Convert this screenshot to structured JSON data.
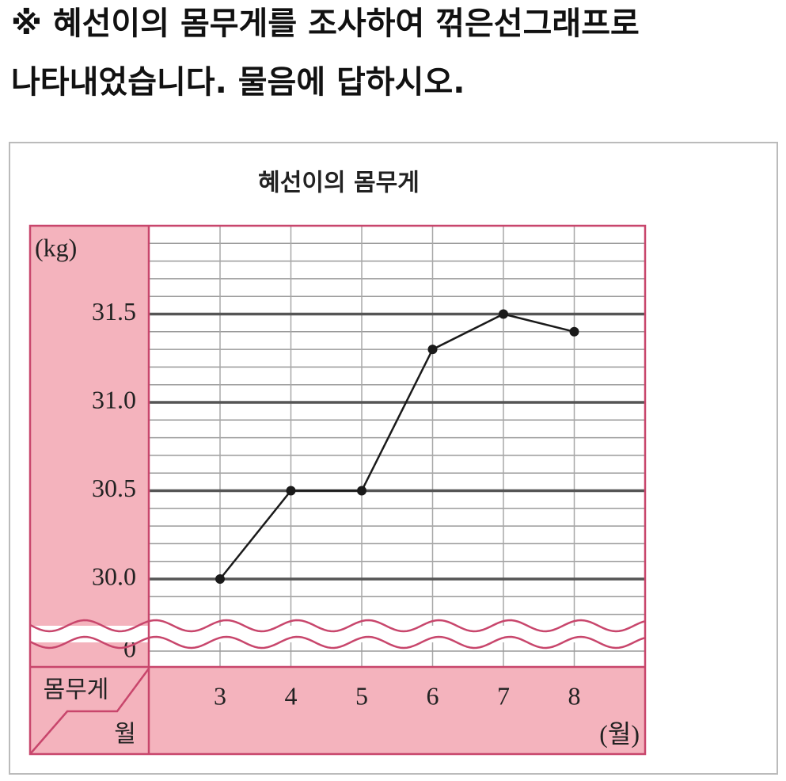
{
  "question": {
    "lines": [
      "※ 혜선이의 몸무게를 조사하여 꺾은선그래프로",
      "나타내었습니다. 물음에 답하시오."
    ]
  },
  "chart_data": {
    "type": "line",
    "title": "혜선이의 몸무게",
    "y_unit": "(kg)",
    "x_unit": "(월)",
    "corner_top": "몸무게",
    "corner_bottom": "월",
    "categories": [
      "3",
      "4",
      "5",
      "6",
      "7",
      "8"
    ],
    "values": [
      30.0,
      30.5,
      30.5,
      31.3,
      31.5,
      31.4
    ],
    "color": "#1a1a1a",
    "ylim": [
      30,
      32
    ],
    "yticks": [
      0,
      {
        "value": 30,
        "label": "30.0"
      },
      30.5,
      {
        "value": 31,
        "label": "31.0"
      },
      31.5
    ],
    "y_axis_break": true,
    "grid": true,
    "minor_grid": 0.1
  }
}
